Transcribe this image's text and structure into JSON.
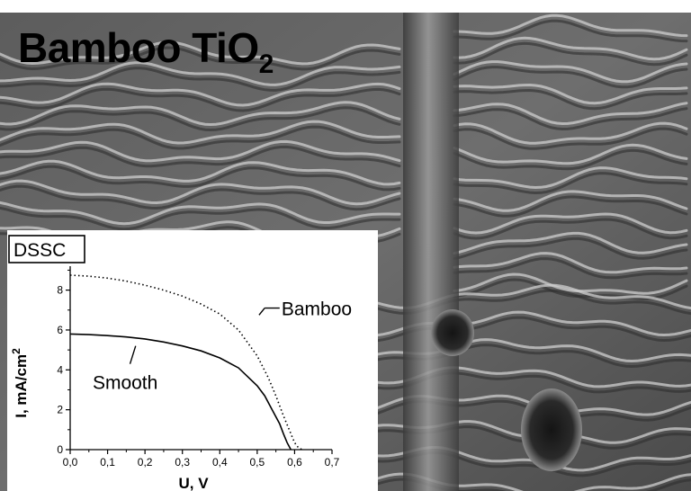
{
  "title": {
    "main": "Bamboo TiO",
    "sub": "2"
  },
  "chart_data": {
    "type": "line",
    "panel_label": "DSSC",
    "xlabel": "U, V",
    "ylabel_main": "I, mA/cm",
    "ylabel_sup": "2",
    "xlim": [
      0,
      0.7
    ],
    "ylim": [
      0,
      9.2
    ],
    "x_ticks": [
      "0,0",
      "0,1",
      "0,2",
      "0,3",
      "0,4",
      "0,5",
      "0,6",
      "0,7"
    ],
    "y_ticks": [
      "0",
      "2",
      "4",
      "6",
      "8"
    ],
    "grid": false,
    "series": [
      {
        "name": "Bamboo",
        "style": "dotted",
        "x": [
          0.0,
          0.05,
          0.1,
          0.15,
          0.2,
          0.25,
          0.3,
          0.35,
          0.4,
          0.45,
          0.5,
          0.53,
          0.55,
          0.57,
          0.59,
          0.6,
          0.61,
          0.62
        ],
        "y": [
          8.75,
          8.7,
          8.6,
          8.45,
          8.25,
          8.0,
          7.7,
          7.3,
          6.8,
          6.0,
          4.7,
          3.6,
          2.7,
          1.7,
          0.8,
          0.35,
          0.1,
          0.0
        ]
      },
      {
        "name": "Smooth",
        "style": "solid",
        "x": [
          0.0,
          0.05,
          0.1,
          0.15,
          0.2,
          0.25,
          0.3,
          0.35,
          0.4,
          0.45,
          0.5,
          0.52,
          0.54,
          0.56,
          0.57,
          0.58,
          0.59
        ],
        "y": [
          5.8,
          5.77,
          5.72,
          5.65,
          5.55,
          5.4,
          5.2,
          4.95,
          4.6,
          4.1,
          3.2,
          2.7,
          2.0,
          1.3,
          0.8,
          0.35,
          0.0
        ]
      }
    ],
    "annotations": [
      {
        "text": "Bamboo",
        "x": 0.5,
        "y": 7.0
      },
      {
        "text": "Smooth",
        "x": 0.18,
        "y": 4.0
      }
    ]
  }
}
